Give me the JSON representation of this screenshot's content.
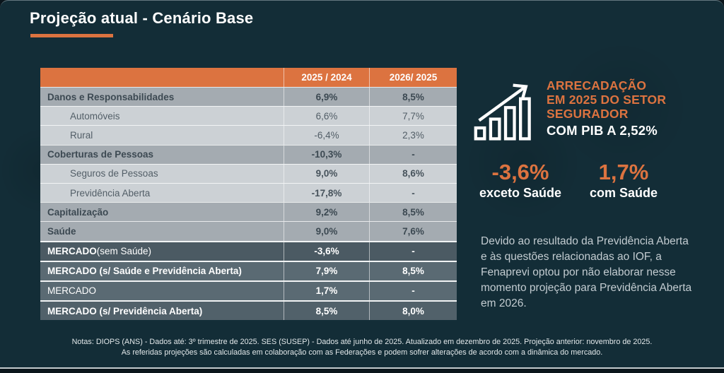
{
  "slide": {
    "title": "Projeção atual - Cenário Base"
  },
  "colors": {
    "accent_orange": "#dc7340",
    "slide_background": "#132d37",
    "section_row": "#a4abb1",
    "sub_row": "#ccd1d5",
    "market_row_dark": "#4b5a63",
    "market_row_light": "#5a6a73"
  },
  "table": {
    "columns": [
      "2025 / 2024",
      "2026/ 2025"
    ],
    "rows": [
      {
        "label": "Danos e Responsabilidades",
        "type": "section",
        "v1": "6,9%",
        "v2": "8,5%"
      },
      {
        "label": "Automóveis",
        "type": "sub",
        "v1": "6,6%",
        "v2": "7,7%"
      },
      {
        "label": "Rural",
        "type": "sub",
        "v1": "-6,4%",
        "v2": "2,3%"
      },
      {
        "label": "Coberturas de Pessoas",
        "type": "section",
        "v1": "-10,3%",
        "v2": "-"
      },
      {
        "label": "Seguros de Pessoas",
        "type": "sub",
        "bold_values": true,
        "v1": "9,0%",
        "v2": "8,6%"
      },
      {
        "label": "Previdência Aberta",
        "type": "sub",
        "bold_values": true,
        "v1": "-17,8%",
        "v2": "-"
      },
      {
        "label": "Capitalização",
        "type": "section",
        "v1": "9,2%",
        "v2": "8,5%"
      },
      {
        "label": "Saúde",
        "type": "section",
        "v1": "9,0%",
        "v2": "7,6%"
      },
      {
        "label_bold": "MERCADO",
        "label_rest": " (sem Saúde)",
        "type": "market-a",
        "v1": "-3,6%",
        "v2": "-"
      },
      {
        "label_bold": "MERCADO (s/ Saúde e Previdência Aberta)",
        "label_rest": "",
        "type": "market-b",
        "v1": "7,9%",
        "v2": "8,5%"
      },
      {
        "label_bold": "",
        "label_rest": "MERCADO",
        "type": "market-b",
        "v1": "1,7%",
        "v2": "-"
      },
      {
        "label_bold": "MERCADO (s/ Previdência Aberta)",
        "label_rest": "",
        "type": "market-c",
        "v1": "8,5%",
        "v2": "8,0%"
      }
    ]
  },
  "chart_data": {
    "type": "table",
    "title": "Projeção atual - Cenário Base",
    "columns": [
      "",
      "2025 / 2024",
      "2026/ 2025"
    ],
    "rows": [
      [
        "Danos e Responsabilidades",
        "6,9%",
        "8,5%"
      ],
      [
        "Automóveis",
        "6,6%",
        "7,7%"
      ],
      [
        "Rural",
        "-6,4%",
        "2,3%"
      ],
      [
        "Coberturas de Pessoas",
        "-10,3%",
        "-"
      ],
      [
        "Seguros de Pessoas",
        "9,0%",
        "8,6%"
      ],
      [
        "Previdência Aberta",
        "-17,8%",
        "-"
      ],
      [
        "Capitalização",
        "9,2%",
        "8,5%"
      ],
      [
        "Saúde",
        "9,0%",
        "7,6%"
      ],
      [
        "MERCADO (sem Saúde)",
        "-3,6%",
        "-"
      ],
      [
        "MERCADO (s/ Saúde e Previdência Aberta)",
        "7,9%",
        "8,5%"
      ],
      [
        "MERCADO",
        "1,7%",
        "-"
      ],
      [
        "MERCADO (s/ Previdência Aberta)",
        "8,5%",
        "8,0%"
      ]
    ]
  },
  "highlight": {
    "icon": "growth-bar-chart-icon",
    "heading_lines": [
      "ARRECADAÇÃO",
      "EM 2025 DO SETOR",
      "SEGURADOR"
    ],
    "subheading": "COM PIB A 2,52%",
    "stats": [
      {
        "value": "-3,6%",
        "label": "exceto Saúde"
      },
      {
        "value": "1,7%",
        "label": "com Saúde"
      }
    ],
    "note": "Devido ao resultado da Previdência Aberta e às questões relacionadas ao IOF, a Fenaprevi optou por não elaborar nesse momento projeção para Previdência Aberta em 2026."
  },
  "footnotes": {
    "line1": "Notas: DIOPS (ANS) - Dados até: 3º trimestre de 2025. SES (SUSEP) - Dados até junho de 2025. Atualizado em dezembro de 2025. Projeção anterior: novembro de 2025.",
    "line2": "As referidas projeções são calculadas em colaboração com as Federações e podem sofrer alterações de acordo com a dinâmica do mercado."
  }
}
